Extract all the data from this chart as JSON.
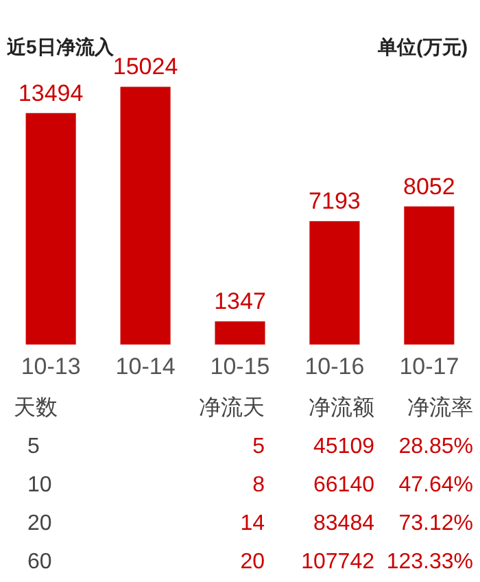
{
  "chart_data": [
    {
      "type": "bar",
      "title": "近5日净流入",
      "subtitle": "单位(万元)",
      "categories": [
        "10-13",
        "10-14",
        "10-15",
        "10-16",
        "10-17"
      ],
      "values": [
        13494,
        15024,
        1347,
        7193,
        8052
      ],
      "color": "#cc0000",
      "data_labels": true
    },
    {
      "type": "other",
      "categories": [
        "天数",
        "净流天",
        "净流额",
        "净流率"
      ],
      "annotations": [
        "5",
        "5",
        "45109",
        "28.85%",
        "10",
        "8",
        "66140",
        "47.64%",
        "20",
        "14",
        "83484",
        "73.12%",
        "60",
        "20",
        "107742",
        "123.33%"
      ]
    }
  ]
}
